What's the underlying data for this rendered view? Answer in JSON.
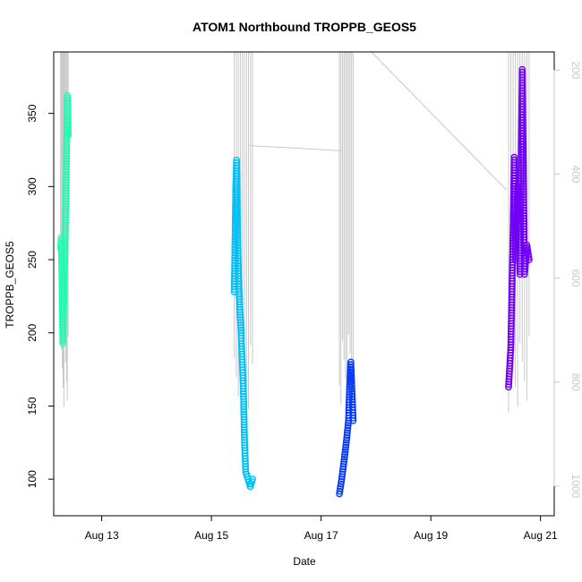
{
  "chart_data": {
    "type": "scatter",
    "title": "ATOM1 Northbound TROPPB_GEOS5",
    "xlabel": "Date",
    "ylabel": "TROPPB_GEOS5",
    "x_axis": {
      "type": "date",
      "range": [
        "2016-08-12T03:00",
        "2016-08-21T06:00"
      ],
      "ticks": [
        "Aug 13",
        "Aug 15",
        "Aug 17",
        "Aug 19",
        "Aug 21"
      ]
    },
    "y_axis": {
      "range": [
        75,
        392
      ],
      "ticks": [
        100,
        150,
        200,
        250,
        300,
        350
      ]
    },
    "y2_axis": {
      "label": "",
      "reversed": true,
      "ticks": [
        200,
        400,
        600,
        800,
        1000
      ],
      "range": [
        1057,
        165
      ],
      "color": "#c8c8c8"
    },
    "grid": false,
    "series": [
      {
        "color": "#1efcb0",
        "points": [
          [
            "2016-08-12T06:00",
            258
          ],
          [
            "2016-08-12T06:20",
            265
          ],
          [
            "2016-08-12T06:40",
            230
          ],
          [
            "2016-08-12T07:00",
            193
          ],
          [
            "2016-08-12T07:30",
            232
          ],
          [
            "2016-08-12T08:00",
            268
          ],
          [
            "2016-08-12T08:20",
            290
          ],
          [
            "2016-08-12T08:40",
            330
          ],
          [
            "2016-08-12T09:00",
            362
          ],
          [
            "2016-08-12T09:20",
            335
          ]
        ]
      },
      {
        "color": "#00c0f8",
        "points": [
          [
            "2016-08-15T10:00",
            228
          ],
          [
            "2016-08-15T10:20",
            262
          ],
          [
            "2016-08-15T10:40",
            300
          ],
          [
            "2016-08-15T11:00",
            318
          ],
          [
            "2016-08-15T11:30",
            265
          ],
          [
            "2016-08-15T12:00",
            230
          ],
          [
            "2016-08-15T13:00",
            200
          ],
          [
            "2016-08-15T14:00",
            160
          ],
          [
            "2016-08-15T14:30",
            125
          ],
          [
            "2016-08-15T15:00",
            105
          ],
          [
            "2016-08-15T16:00",
            100
          ],
          [
            "2016-08-15T17:00",
            95
          ],
          [
            "2016-08-15T18:00",
            100
          ]
        ]
      },
      {
        "color": "#0a3cf8",
        "points": [
          [
            "2016-08-17T08:00",
            90
          ],
          [
            "2016-08-17T09:00",
            100
          ],
          [
            "2016-08-17T10:00",
            112
          ],
          [
            "2016-08-17T11:00",
            125
          ],
          [
            "2016-08-17T12:00",
            140
          ],
          [
            "2016-08-17T12:30",
            165
          ],
          [
            "2016-08-17T13:00",
            180
          ],
          [
            "2016-08-17T14:00",
            140
          ]
        ]
      },
      {
        "color": "#7000f8",
        "points": [
          [
            "2016-08-20T10:00",
            163
          ],
          [
            "2016-08-20T11:00",
            190
          ],
          [
            "2016-08-20T12:00",
            270
          ],
          [
            "2016-08-20T12:30",
            320
          ],
          [
            "2016-08-20T13:00",
            250
          ],
          [
            "2016-08-20T14:00",
            300
          ],
          [
            "2016-08-20T15:00",
            240
          ],
          [
            "2016-08-20T16:00",
            380
          ],
          [
            "2016-08-20T17:00",
            240
          ],
          [
            "2016-08-20T18:00",
            260
          ],
          [
            "2016-08-20T19:00",
            250
          ]
        ]
      }
    ]
  }
}
